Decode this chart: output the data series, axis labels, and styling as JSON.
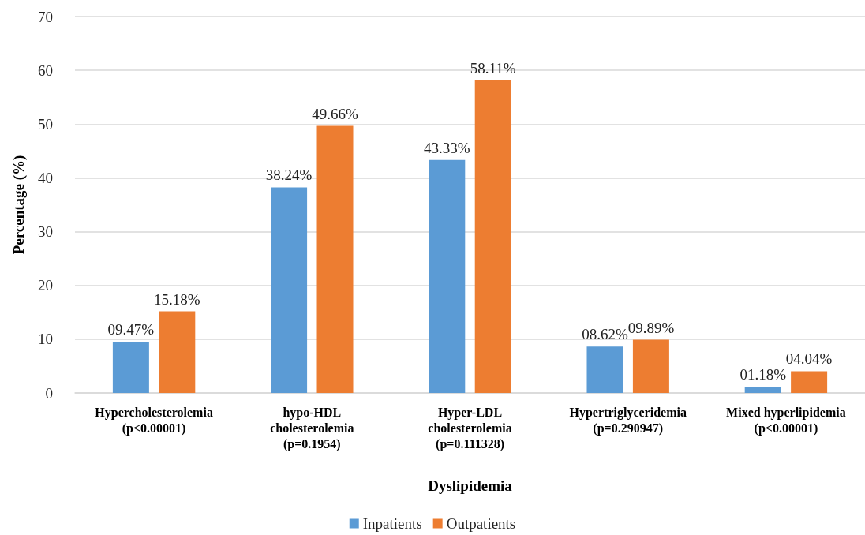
{
  "chart_data": {
    "type": "bar",
    "xlabel": "Dyslipidemia",
    "ylabel": "Percentage (%)",
    "categories": [
      "Hypercholesterolemia\n(p<0.00001)",
      "hypo-HDL\ncholesterolemia\n(p=0.1954)",
      "Hyper-LDL\ncholesterolemia\n(p=0.111328)",
      "Hypertriglyceridemia\n(p=0.290947)",
      "Mixed hyperlipidemia\n(p<0.00001)"
    ],
    "series": [
      {
        "name": "Inpatients",
        "color": "#5b9bd5",
        "values": [
          9.47,
          38.24,
          43.33,
          8.62,
          1.18
        ],
        "value_labels": [
          "09.47%",
          "38.24%",
          "43.33%",
          "08.62%",
          "01.18%"
        ]
      },
      {
        "name": "Outpatients",
        "color": "#ed7d31",
        "values": [
          15.18,
          49.66,
          58.11,
          9.89,
          4.04
        ],
        "value_labels": [
          "15.18%",
          "49.66%",
          "58.11%",
          "09.89%",
          "04.04%"
        ]
      }
    ],
    "ylim": [
      0,
      70
    ],
    "yticks": [
      0,
      10,
      20,
      30,
      40,
      50,
      60,
      70
    ],
    "grid": "y",
    "legend": "bottom"
  }
}
